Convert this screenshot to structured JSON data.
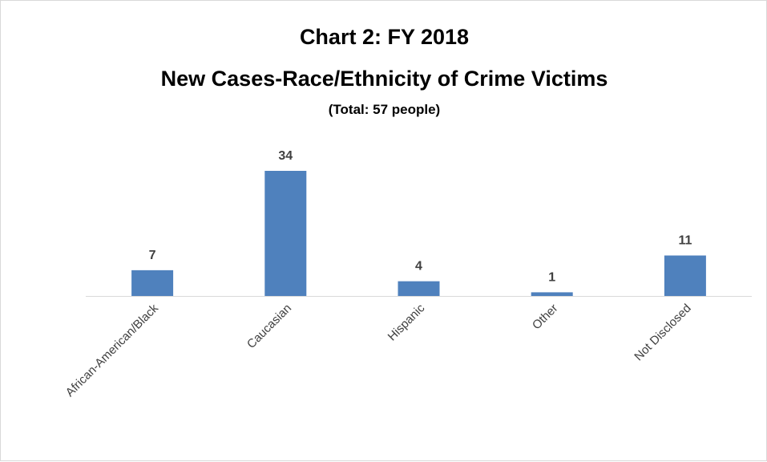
{
  "chart_data": {
    "type": "bar",
    "title": "Chart 2: FY 2018",
    "subtitle": "New Cases-Race/Ethnicity of Crime Victims",
    "subtitle2": "(Total: 57 people)",
    "categories": [
      "African-American/Black",
      "Caucasian",
      "Hispanic",
      "Other",
      "Not Disclosed"
    ],
    "values": [
      7,
      34,
      4,
      1,
      11
    ],
    "xlabel": "",
    "ylabel": "",
    "ylim": [
      0,
      34
    ],
    "grid": false,
    "legend": "none",
    "bar_color": "#4f81bd",
    "label_color": "#404040"
  }
}
